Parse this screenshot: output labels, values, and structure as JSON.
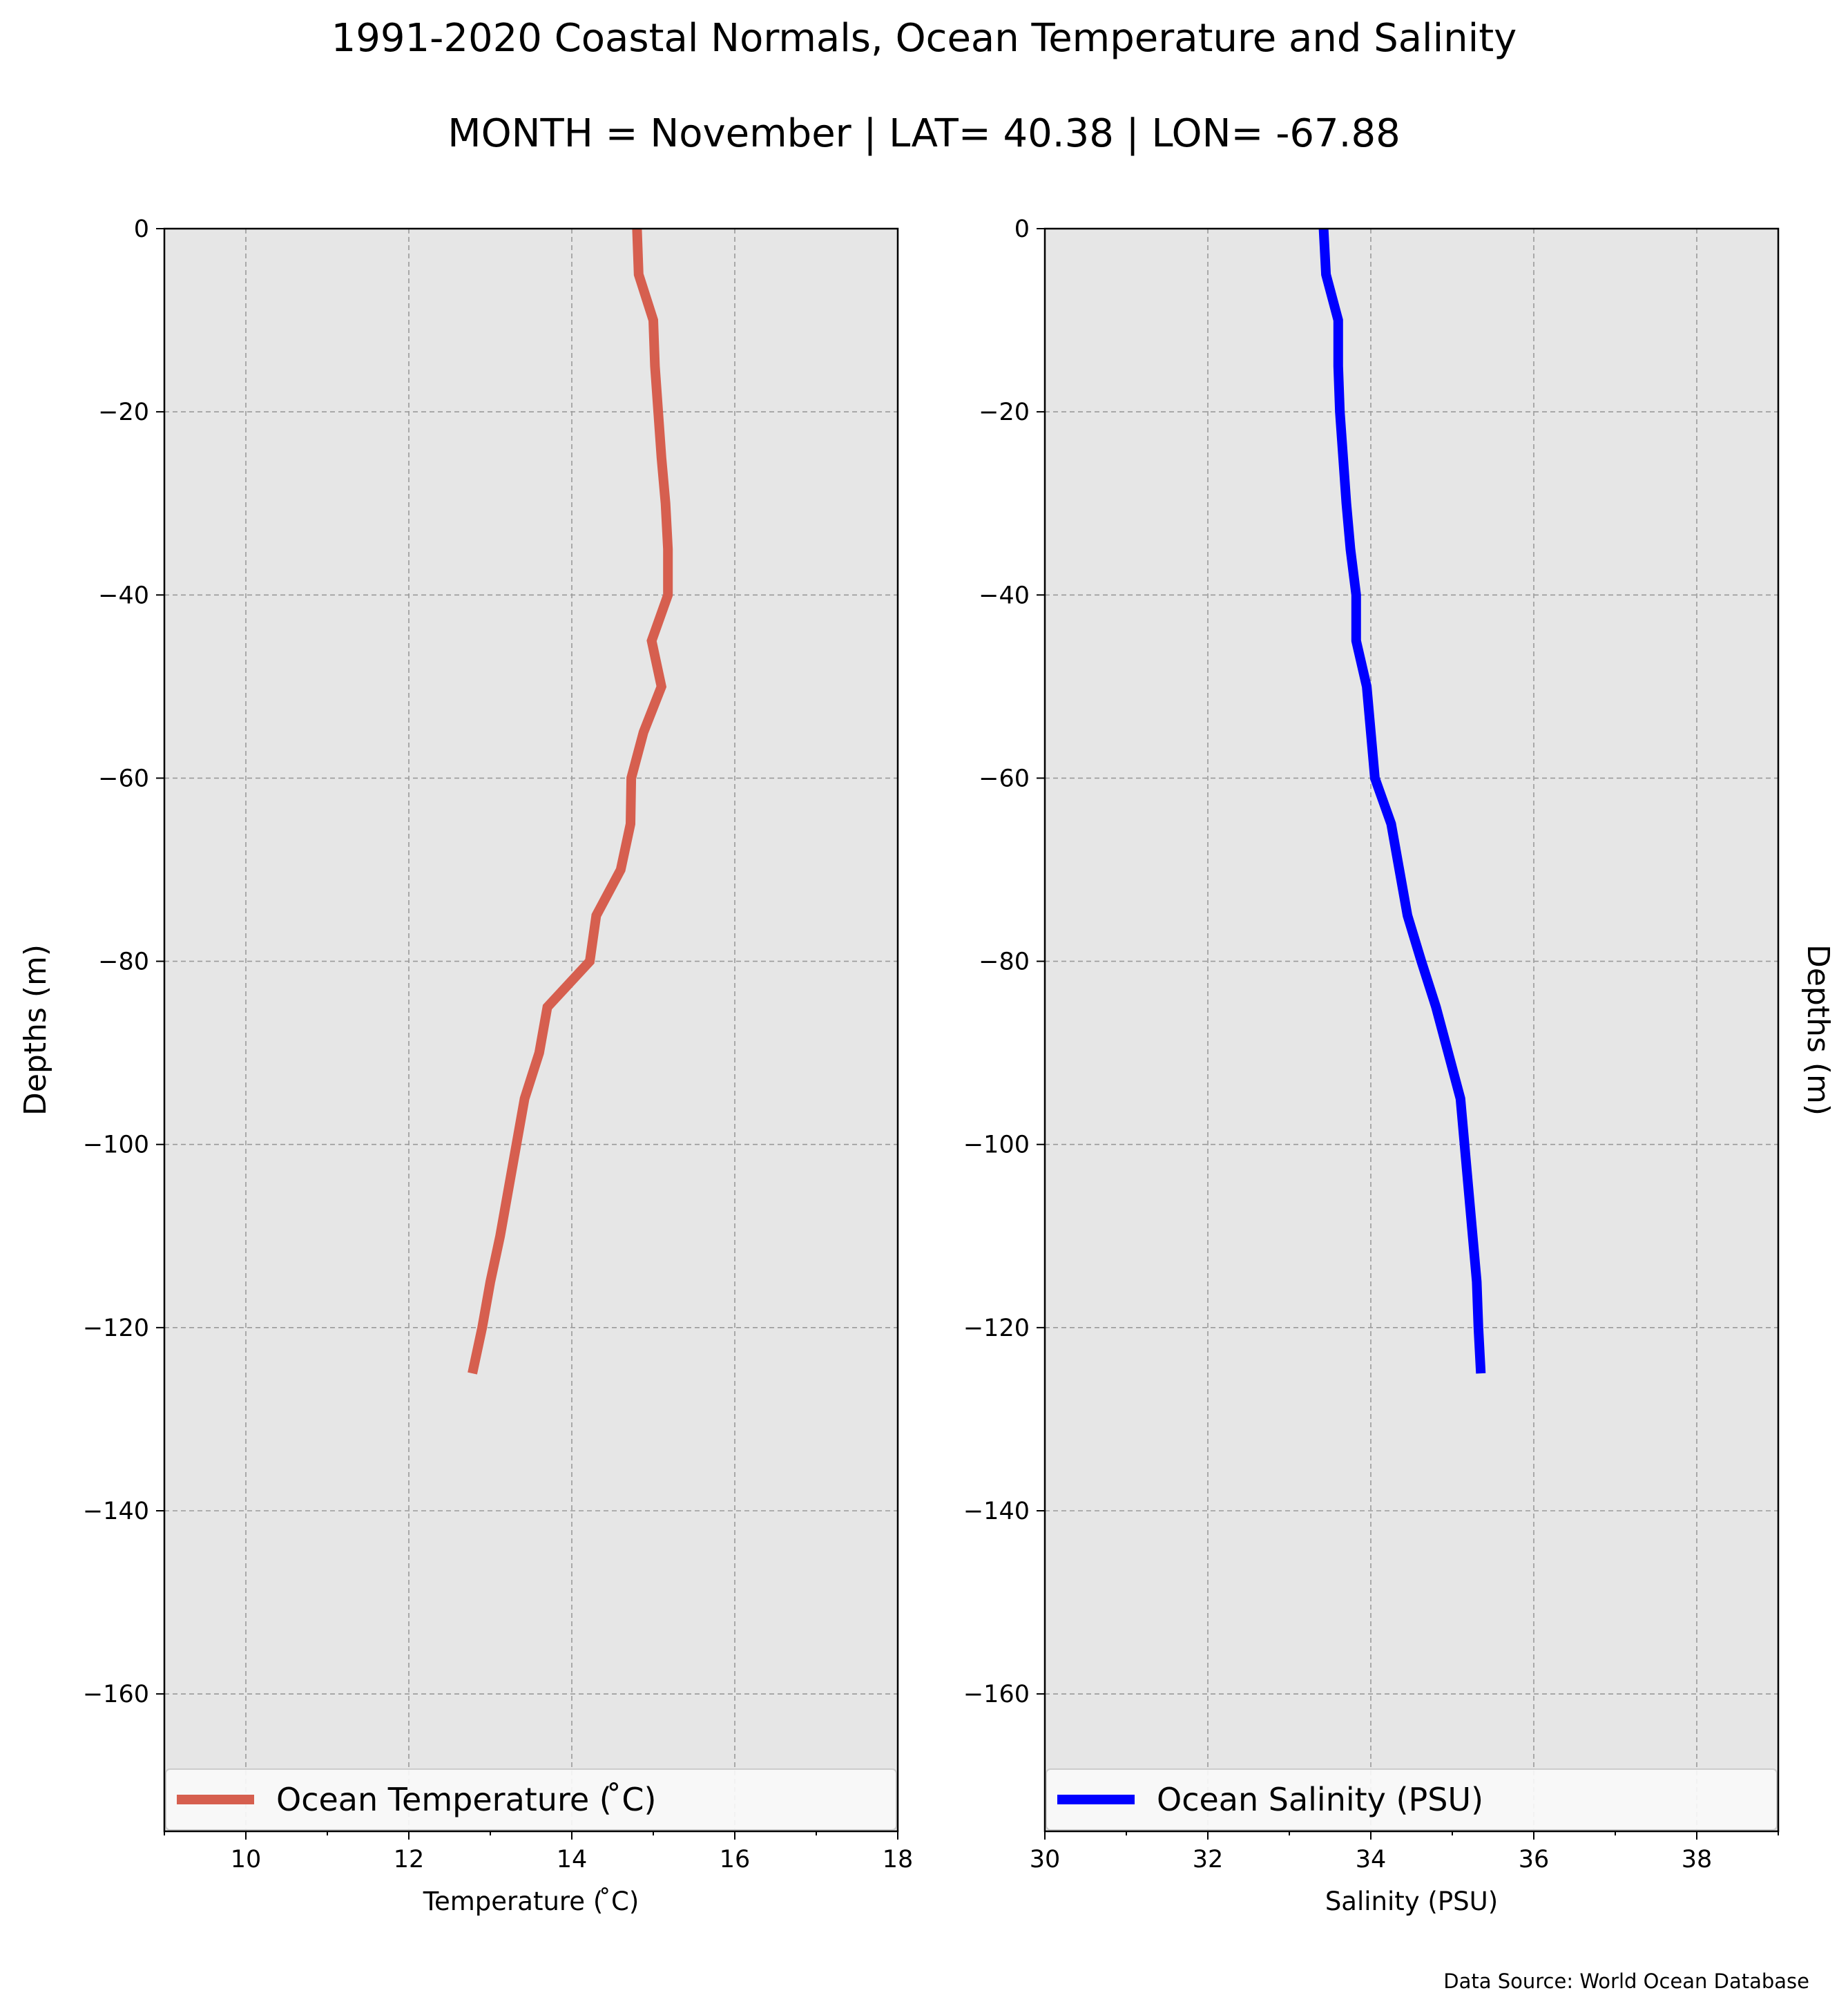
{
  "figure": {
    "title": "1991-2020 Coastal Normals, Ocean Temperature and Salinity",
    "subtitle": "MONTH = November | LAT= 40.38 | LON= -67.88",
    "source_note": "Data Source: World Ocean Database",
    "background": "#e6e6e6"
  },
  "chart_data": [
    {
      "type": "line",
      "series": [
        {
          "name": "Ocean Temperature ( ̊C)",
          "color": "#d65f4f",
          "points": [
            {
              "x": 14.8,
              "y": 0
            },
            {
              "x": 14.82,
              "y": -5
            },
            {
              "x": 15.0,
              "y": -10
            },
            {
              "x": 15.02,
              "y": -15
            },
            {
              "x": 15.06,
              "y": -20
            },
            {
              "x": 15.1,
              "y": -25
            },
            {
              "x": 15.15,
              "y": -30
            },
            {
              "x": 15.18,
              "y": -35
            },
            {
              "x": 15.18,
              "y": -40
            },
            {
              "x": 14.98,
              "y": -45
            },
            {
              "x": 15.1,
              "y": -50
            },
            {
              "x": 14.88,
              "y": -55
            },
            {
              "x": 14.73,
              "y": -60
            },
            {
              "x": 14.72,
              "y": -65
            },
            {
              "x": 14.6,
              "y": -70
            },
            {
              "x": 14.3,
              "y": -75
            },
            {
              "x": 14.22,
              "y": -80
            },
            {
              "x": 13.7,
              "y": -85
            },
            {
              "x": 13.6,
              "y": -90
            },
            {
              "x": 13.42,
              "y": -95
            },
            {
              "x": 13.32,
              "y": -100
            },
            {
              "x": 13.22,
              "y": -105
            },
            {
              "x": 13.12,
              "y": -110
            },
            {
              "x": 13.0,
              "y": -115
            },
            {
              "x": 12.9,
              "y": -120
            },
            {
              "x": 12.78,
              "y": -125
            }
          ]
        }
      ],
      "xlabel": "Temperature ( ̊C)",
      "ylabel": "Depths (m)",
      "xlim": [
        9,
        18
      ],
      "ylim": [
        -175,
        0
      ],
      "xticks": [
        10,
        12,
        14,
        16,
        18
      ],
      "xtick_labels": [
        "10",
        "12",
        "14",
        "16",
        "18"
      ],
      "yticks": [
        0,
        -20,
        -40,
        -60,
        -80,
        -100,
        -120,
        -140,
        -160
      ],
      "ytick_labels": [
        "0",
        "−20",
        "−40",
        "−60",
        "−80",
        "−100",
        "−120",
        "−140",
        "−160"
      ],
      "grid": true,
      "legend_position": "lower center",
      "ylabel_side": "left"
    },
    {
      "type": "line",
      "series": [
        {
          "name": "Ocean Salinity (PSU)",
          "color": "#0000ff",
          "points": [
            {
              "x": 33.42,
              "y": 0
            },
            {
              "x": 33.45,
              "y": -5
            },
            {
              "x": 33.6,
              "y": -10
            },
            {
              "x": 33.6,
              "y": -15
            },
            {
              "x": 33.62,
              "y": -20
            },
            {
              "x": 33.66,
              "y": -25
            },
            {
              "x": 33.7,
              "y": -30
            },
            {
              "x": 33.75,
              "y": -35
            },
            {
              "x": 33.82,
              "y": -40
            },
            {
              "x": 33.82,
              "y": -45
            },
            {
              "x": 33.95,
              "y": -50
            },
            {
              "x": 34.0,
              "y": -55
            },
            {
              "x": 34.05,
              "y": -60
            },
            {
              "x": 34.25,
              "y": -65
            },
            {
              "x": 34.35,
              "y": -70
            },
            {
              "x": 34.45,
              "y": -75
            },
            {
              "x": 34.62,
              "y": -80
            },
            {
              "x": 34.8,
              "y": -85
            },
            {
              "x": 34.95,
              "y": -90
            },
            {
              "x": 35.1,
              "y": -95
            },
            {
              "x": 35.15,
              "y": -100
            },
            {
              "x": 35.2,
              "y": -105
            },
            {
              "x": 35.25,
              "y": -110
            },
            {
              "x": 35.3,
              "y": -115
            },
            {
              "x": 35.32,
              "y": -120
            },
            {
              "x": 35.35,
              "y": -125
            }
          ]
        }
      ],
      "xlabel": "Salinity (PSU)",
      "ylabel": "Depths (m)",
      "xlim": [
        30,
        39
      ],
      "ylim": [
        -175,
        0
      ],
      "xticks": [
        30,
        32,
        34,
        36,
        38
      ],
      "xtick_labels": [
        "30",
        "32",
        "34",
        "36",
        "38"
      ],
      "yticks": [
        0,
        -20,
        -40,
        -60,
        -80,
        -100,
        -120,
        -140,
        -160
      ],
      "ytick_labels": [
        "0",
        "−20",
        "−40",
        "−60",
        "−80",
        "−100",
        "−120",
        "−140",
        "−160"
      ],
      "grid": true,
      "legend_position": "lower center",
      "ylabel_side": "right"
    }
  ]
}
